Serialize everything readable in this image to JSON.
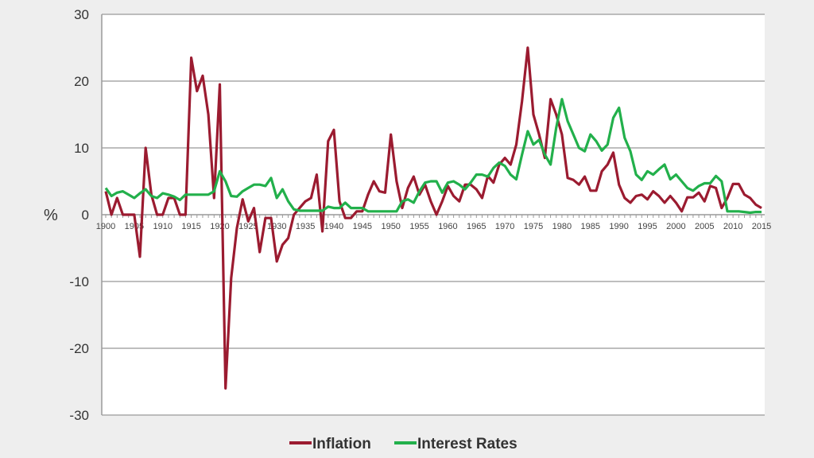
{
  "chart_data": {
    "type": "line",
    "title": "",
    "xlabel": "",
    "ylabel": "%",
    "xlim": [
      1900,
      2015
    ],
    "ylim": [
      -30,
      30
    ],
    "yticks": [
      30,
      20,
      10,
      0,
      -10,
      -20,
      -30
    ],
    "ytick_labels": [
      "30",
      "20",
      "10",
      "0",
      "-10",
      "-20",
      "-30"
    ],
    "xtick_labels": [
      "1900",
      "1905",
      "1910",
      "1915",
      "1920",
      "1925",
      "1930",
      "1935",
      "1940",
      "1945",
      "1950",
      "1955",
      "1960",
      "1965",
      "1970",
      "1975",
      "1980",
      "1985",
      "1990",
      "1995",
      "2000",
      "2005",
      "2010",
      "2015"
    ],
    "grid": true,
    "legend_position": "bottom-center",
    "x_start": 1900,
    "series": [
      {
        "name": "Inflation",
        "color": "#9b1b30",
        "values": [
          3.5,
          0,
          2.5,
          0,
          0,
          0,
          -6.3,
          10,
          3,
          0,
          0,
          2.5,
          2.5,
          0,
          0,
          23.5,
          18.5,
          20.8,
          15,
          2.5,
          19.5,
          -26,
          -9.5,
          -2,
          2.3,
          -1,
          1,
          -5.6,
          -0.5,
          -0.5,
          -7,
          -4.5,
          -3.5,
          0,
          1,
          2,
          2.5,
          6,
          -2.5,
          11,
          12.7,
          2,
          -0.5,
          -0.5,
          0.5,
          0.5,
          3,
          5,
          3.5,
          3.3,
          12,
          5,
          1,
          4,
          5.7,
          3,
          4.5,
          2,
          0,
          2,
          4.3,
          2.8,
          2,
          4.5,
          4.5,
          3.8,
          2.5,
          5.8,
          4.8,
          7.5,
          8.5,
          7.5,
          10.5,
          17,
          25,
          15,
          12,
          8.5,
          17.3,
          15,
          12,
          5.5,
          5.2,
          4.5,
          5.7,
          3.6,
          3.6,
          6.5,
          7.5,
          9.3,
          4.5,
          2.5,
          1.8,
          2.8,
          3,
          2.3,
          3.5,
          2.8,
          1.8,
          2.8,
          1.8,
          0.5,
          2.6,
          2.6,
          3.3,
          2,
          4.3,
          4,
          1,
          2.5,
          4.6,
          4.6,
          3,
          2.5,
          1.5,
          1
        ]
      },
      {
        "name": "Interest Rates",
        "color": "#22b04b",
        "values": [
          4,
          2.8,
          3.3,
          3.5,
          3,
          2.5,
          3.2,
          3.8,
          2.8,
          2.5,
          3.2,
          3,
          2.7,
          2.2,
          3,
          3,
          3,
          3,
          3,
          3.5,
          6.5,
          5,
          2.8,
          2.7,
          3.5,
          4,
          4.5,
          4.5,
          4.3,
          5.5,
          2.5,
          3.8,
          2,
          0.8,
          0.6,
          0.6,
          0.6,
          0.6,
          0.6,
          1.2,
          1,
          1,
          1.8,
          1,
          1,
          1,
          0.5,
          0.5,
          0.5,
          0.5,
          0.5,
          0.5,
          2,
          2.3,
          1.8,
          3.5,
          4.8,
          5,
          5,
          3.3,
          4.8,
          5,
          4.5,
          3.8,
          4.8,
          6,
          6,
          5.7,
          7,
          7.8,
          7.3,
          6,
          5.3,
          9,
          12.5,
          10.5,
          11.2,
          9,
          7.5,
          13,
          17.3,
          14,
          12,
          10,
          9.5,
          12,
          11,
          9.6,
          10.5,
          14.5,
          16,
          11.5,
          9.5,
          6,
          5.2,
          6.5,
          6,
          6.8,
          7.5,
          5.3,
          6,
          5,
          4,
          3.6,
          4.3,
          4.7,
          4.7,
          5.8,
          5,
          0.5,
          0.5,
          0.5,
          0.4,
          0.3,
          0.4,
          0.4
        ]
      }
    ]
  }
}
